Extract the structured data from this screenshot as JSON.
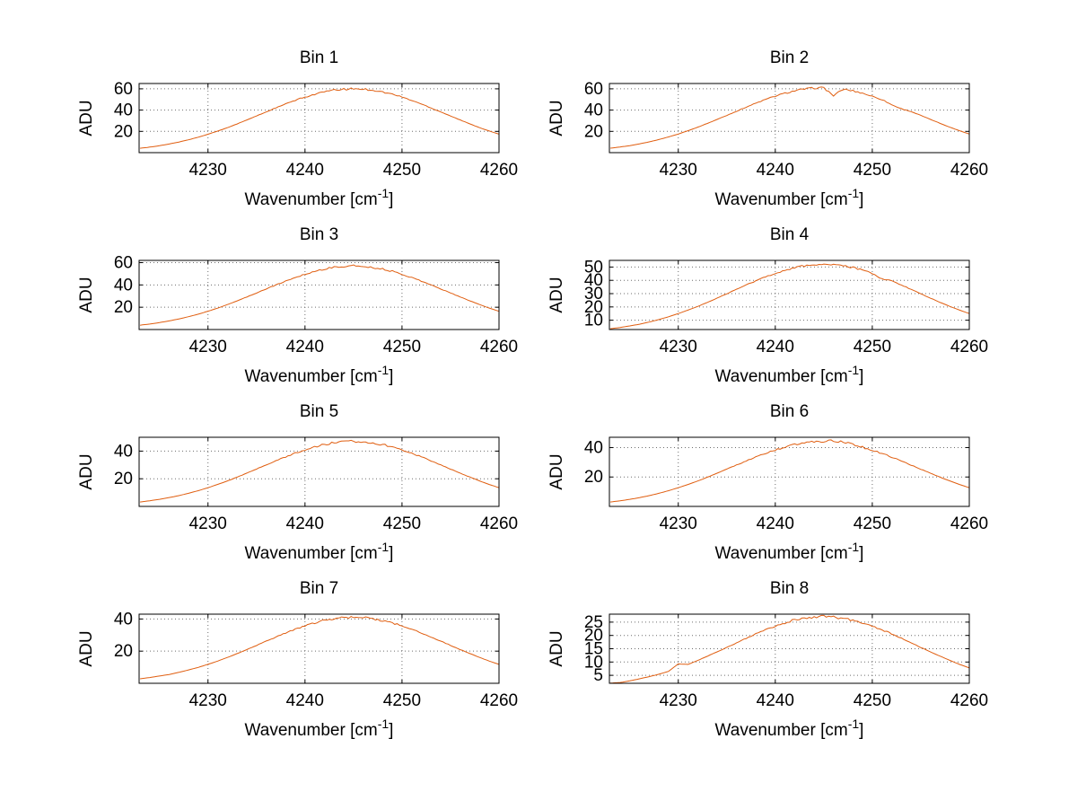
{
  "figure": {
    "background": "#ffffff",
    "line_color": "#e05e10",
    "grid_color": "#6e6e6e",
    "axis_color": "#000000",
    "text_color": "#000000"
  },
  "chart_data": {
    "type": "line",
    "grid": true,
    "legend": "none",
    "xlabel": {
      "pre": "Wavenumber [cm",
      "sup": "-1",
      "post": "]"
    },
    "ylabel": "ADU",
    "x_start": 4223,
    "x_step": 1,
    "xlim": [
      4222.9,
      4260
    ],
    "x_ticks": [
      4230,
      4240,
      4250,
      4260
    ],
    "subplots": [
      {
        "title": "Bin 1",
        "y_ticks": [
          20,
          40,
          60
        ],
        "ylim": [
          0,
          65
        ],
        "noise": 0.9,
        "values": [
          4.1,
          5.2,
          6.5,
          8.1,
          10.0,
          12.1,
          14.5,
          17.3,
          20.3,
          23.5,
          27.0,
          30.7,
          34.5,
          38.3,
          42.1,
          45.7,
          49.2,
          52.2,
          54.9,
          57.2,
          58.7,
          59.6,
          60.1,
          59.8,
          58.8,
          57.0,
          55.0,
          52.3,
          49.1,
          45.8,
          42.0,
          38.3,
          34.5,
          30.7,
          27.0,
          23.5,
          20.3,
          17.4
        ]
      },
      {
        "title": "Bin 2",
        "y_ticks": [
          20,
          40,
          60
        ],
        "ylim": [
          0,
          65
        ],
        "noise": 0.9,
        "values": [
          4.2,
          5.3,
          6.6,
          8.3,
          10.1,
          12.3,
          14.8,
          17.5,
          20.6,
          23.9,
          27.5,
          31.2,
          35.0,
          38.9,
          42.8,
          46.5,
          50.0,
          53.1,
          55.8,
          58.1,
          59.7,
          60.8,
          61.0,
          53.5,
          59.6,
          58.1,
          55.9,
          53.0,
          49.9,
          45.0,
          41.3,
          38.6,
          35.0,
          31.2,
          27.5,
          23.9,
          20.6,
          17.5
        ]
      },
      {
        "title": "Bin 3",
        "y_ticks": [
          20,
          40,
          60
        ],
        "ylim": [
          0,
          62
        ],
        "noise": 0.9,
        "values": [
          3.9,
          4.9,
          6.2,
          7.7,
          9.5,
          11.5,
          13.8,
          16.4,
          19.2,
          22.4,
          25.7,
          29.2,
          32.8,
          36.4,
          40.0,
          43.4,
          46.7,
          49.6,
          52.2,
          54.3,
          55.8,
          56.6,
          57.1,
          56.8,
          55.7,
          54.2,
          52.2,
          49.6,
          46.7,
          43.4,
          40.0,
          36.4,
          32.8,
          29.2,
          25.7,
          22.4,
          19.2,
          16.4
        ]
      },
      {
        "title": "Bin 4",
        "y_ticks": [
          10,
          20,
          30,
          40,
          50
        ],
        "ylim": [
          3,
          55
        ],
        "noise": 0.8,
        "values": [
          3.6,
          4.5,
          5.7,
          7.0,
          8.6,
          10.5,
          12.6,
          15.0,
          17.6,
          20.4,
          23.4,
          26.6,
          29.9,
          33.2,
          36.5,
          39.6,
          42.6,
          45.3,
          47.6,
          49.5,
          50.9,
          51.8,
          52.1,
          51.7,
          50.8,
          49.5,
          47.7,
          45.3,
          41.0,
          39.6,
          36.5,
          33.2,
          29.9,
          26.6,
          23.4,
          20.4,
          17.6,
          15.0
        ]
      },
      {
        "title": "Bin 5",
        "y_ticks": [
          20,
          40
        ],
        "ylim": [
          0,
          50
        ],
        "noise": 0.8,
        "values": [
          3.2,
          4.1,
          5.1,
          6.4,
          7.8,
          9.5,
          11.4,
          13.5,
          15.9,
          18.4,
          21.2,
          24.0,
          27.0,
          30.0,
          33.0,
          35.8,
          38.5,
          40.9,
          43.0,
          44.8,
          46.0,
          46.8,
          47.1,
          46.7,
          46.0,
          44.7,
          43.0,
          40.9,
          38.5,
          35.8,
          33.0,
          30.0,
          27.0,
          24.0,
          21.2,
          18.4,
          15.9,
          13.5
        ]
      },
      {
        "title": "Bin 6",
        "y_ticks": [
          20,
          40
        ],
        "ylim": [
          0,
          47
        ],
        "noise": 0.9,
        "values": [
          3.0,
          3.8,
          4.8,
          6.0,
          7.3,
          8.9,
          10.7,
          12.7,
          14.9,
          17.3,
          19.8,
          22.5,
          25.3,
          28.1,
          30.9,
          33.5,
          36.0,
          38.3,
          40.3,
          42.0,
          43.1,
          43.9,
          44.2,
          44.6,
          43.9,
          42.0,
          40.3,
          38.3,
          36.0,
          33.5,
          30.9,
          28.1,
          25.3,
          22.5,
          19.8,
          17.3,
          14.9,
          12.7
        ]
      },
      {
        "title": "Bin 7",
        "y_ticks": [
          20,
          40
        ],
        "ylim": [
          0,
          43
        ],
        "noise": 0.7,
        "values": [
          2.8,
          3.6,
          4.5,
          5.5,
          6.8,
          8.3,
          9.9,
          11.8,
          13.8,
          16.1,
          18.5,
          21.0,
          23.6,
          26.2,
          28.8,
          31.3,
          33.6,
          35.7,
          37.5,
          39.1,
          40.2,
          40.9,
          41.1,
          40.8,
          40.2,
          39.0,
          37.5,
          35.7,
          33.6,
          31.3,
          28.8,
          26.2,
          23.6,
          21.0,
          18.5,
          16.1,
          13.8,
          11.8
        ]
      },
      {
        "title": "Bin 8",
        "y_ticks": [
          5,
          10,
          15,
          20,
          25
        ],
        "ylim": [
          2,
          28
        ],
        "noise": 0.5,
        "values": [
          2.1,
          2.3,
          2.9,
          3.7,
          4.5,
          5.4,
          6.5,
          9.3,
          9.1,
          10.6,
          12.2,
          13.8,
          15.5,
          17.2,
          18.9,
          20.6,
          22.1,
          23.5,
          24.8,
          25.8,
          26.5,
          27.0,
          27.1,
          26.8,
          26.4,
          25.6,
          24.7,
          23.5,
          22.1,
          20.6,
          18.9,
          17.2,
          15.5,
          13.8,
          12.2,
          10.6,
          9.1,
          7.8
        ]
      }
    ]
  }
}
